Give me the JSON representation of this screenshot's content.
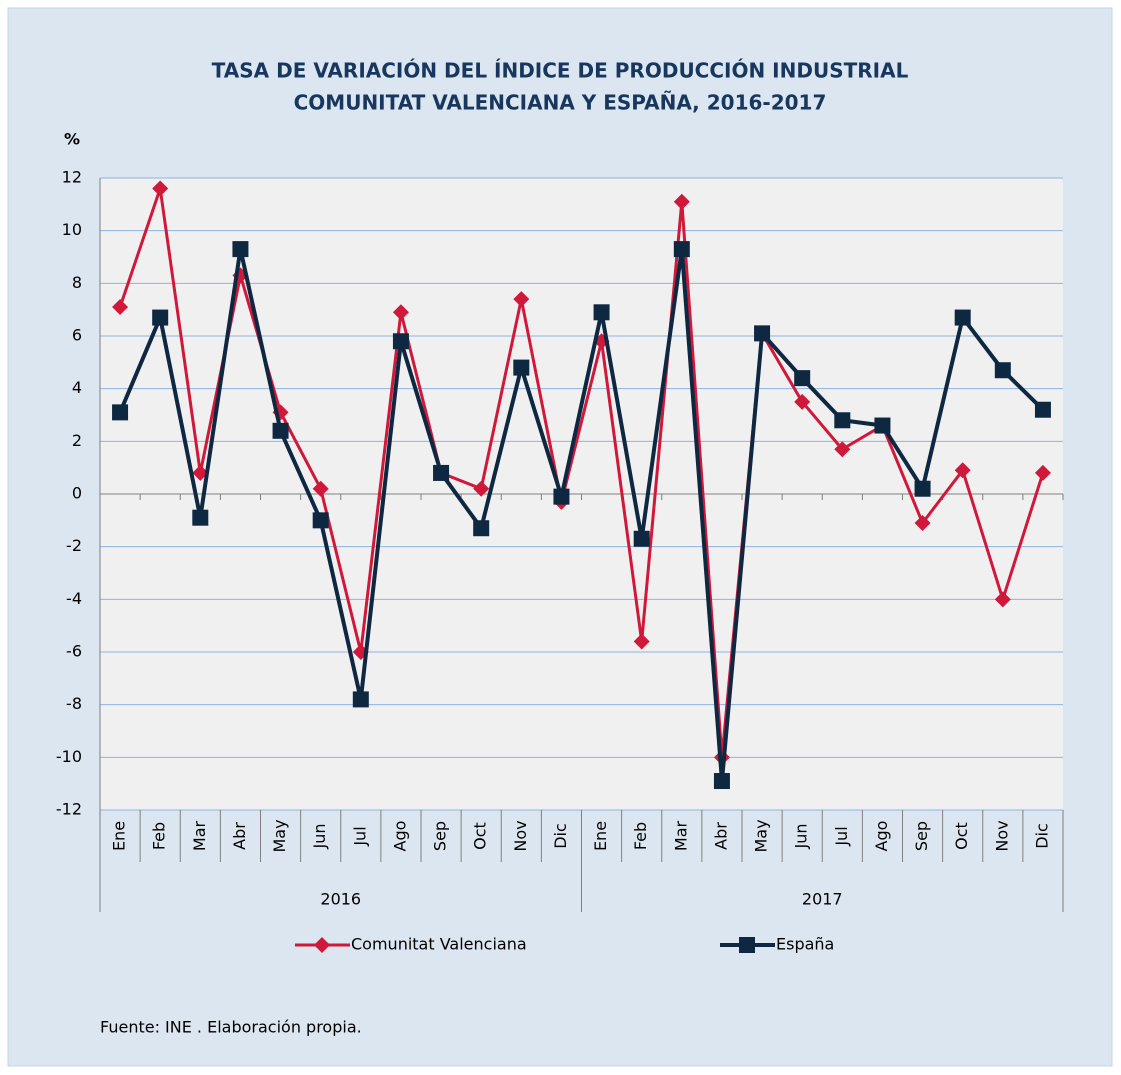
{
  "chart_data": {
    "type": "line",
    "title": [
      "TASA DE VARIACIÓN DEL ÍNDICE DE PRODUCCIÓN INDUSTRIAL",
      "COMUNITAT VALENCIANA Y ESPAÑA, 2016-2017"
    ],
    "y_label": "%",
    "categories": [
      "Ene",
      "Feb",
      "Mar",
      "Abr",
      "May",
      "Jun",
      "Jul",
      "Ago",
      "Sep",
      "Oct",
      "Nov",
      "Dic",
      "Ene",
      "Feb",
      "Mar",
      "Abr",
      "May",
      "Jun",
      "Jul",
      "Ago",
      "Sep",
      "Oct",
      "Nov",
      "Dic"
    ],
    "groups": [
      "2016",
      "2017"
    ],
    "series": [
      {
        "name": "Comunitat Valenciana",
        "color": "#d0183a",
        "marker": "diamond",
        "values": [
          7.1,
          11.6,
          0.8,
          8.3,
          3.1,
          0.2,
          -6.0,
          6.9,
          0.8,
          0.2,
          7.4,
          -0.3,
          5.8,
          -5.6,
          11.1,
          -10.0,
          6.1,
          3.5,
          1.7,
          2.6,
          -1.1,
          0.9,
          -4.0,
          0.8
        ]
      },
      {
        "name": "España",
        "color": "#0e2841",
        "marker": "square",
        "values": [
          3.1,
          6.7,
          -0.9,
          9.3,
          2.4,
          -1.0,
          -7.8,
          5.8,
          0.8,
          -1.3,
          4.8,
          -0.1,
          6.9,
          -1.7,
          9.3,
          -10.9,
          6.1,
          4.4,
          2.8,
          2.6,
          0.2,
          6.7,
          4.7,
          3.2
        ]
      }
    ],
    "ylim": [
      -12,
      12
    ],
    "yticks": [
      -12,
      -10,
      -8,
      -6,
      -4,
      -2,
      0,
      2,
      4,
      6,
      8,
      10,
      12
    ],
    "grid": true,
    "source": "Fuente:  INE . Elaboración propia."
  }
}
